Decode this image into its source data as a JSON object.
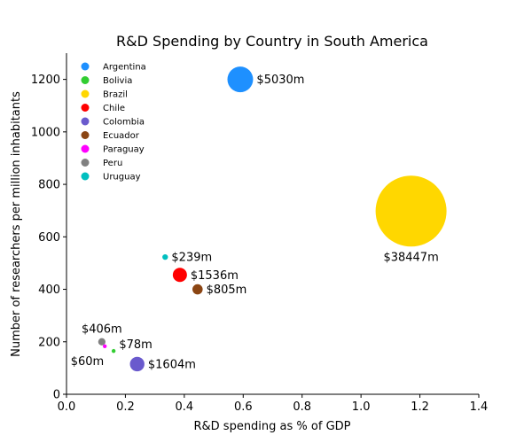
{
  "chart_data": {
    "type": "scatter",
    "title": "R&D Spending by Country in South America",
    "xlabel": "R&D spending as % of GDP",
    "ylabel": "Number of researchers per million inhabitants",
    "xlim": [
      0,
      1.4
    ],
    "ylim": [
      0,
      1300
    ],
    "xticks": [
      0.0,
      0.2,
      0.4,
      0.6,
      0.8,
      1.0,
      1.2,
      1.4
    ],
    "xtick_labels": [
      "0.0",
      "0.2",
      "0.4",
      "0.6",
      "0.8",
      "1.0",
      "1.2",
      "1.4"
    ],
    "yticks": [
      0,
      200,
      400,
      600,
      800,
      1000,
      1200
    ],
    "ytick_labels": [
      "0",
      "200",
      "400",
      "600",
      "800",
      "1000",
      "1200"
    ],
    "grid": false,
    "legend_position": "top-left",
    "size_encoding": "bubble area proportional to R&D spending (USD millions)",
    "points": [
      {
        "name": "Argentina",
        "x": 0.59,
        "y": 1200,
        "size": 5030,
        "label": "$5030m",
        "color": "#1e90ff"
      },
      {
        "name": "Bolivia",
        "x": 0.16,
        "y": 165,
        "size": 78,
        "label": "$78m",
        "color": "#32cd32"
      },
      {
        "name": "Brazil",
        "x": 1.17,
        "y": 698,
        "size": 38447,
        "label": "$38447m",
        "color": "#ffd700"
      },
      {
        "name": "Chile",
        "x": 0.385,
        "y": 455,
        "size": 1536,
        "label": "$1536m",
        "color": "#ff0000"
      },
      {
        "name": "Colombia",
        "x": 0.24,
        "y": 115,
        "size": 1604,
        "label": "$1604m",
        "color": "#6a5acd"
      },
      {
        "name": "Ecuador",
        "x": 0.445,
        "y": 400,
        "size": 805,
        "label": "$805m",
        "color": "#8b4513"
      },
      {
        "name": "Paraguay",
        "x": 0.13,
        "y": 183,
        "size": 60,
        "label": "$60m",
        "color": "#ff00ff"
      },
      {
        "name": "Peru",
        "x": 0.12,
        "y": 200,
        "size": 406,
        "label": "$406m",
        "color": "#808080"
      },
      {
        "name": "Uruguay",
        "x": 0.335,
        "y": 523,
        "size": 239,
        "label": "$239m",
        "color": "#00bfbf"
      }
    ]
  }
}
